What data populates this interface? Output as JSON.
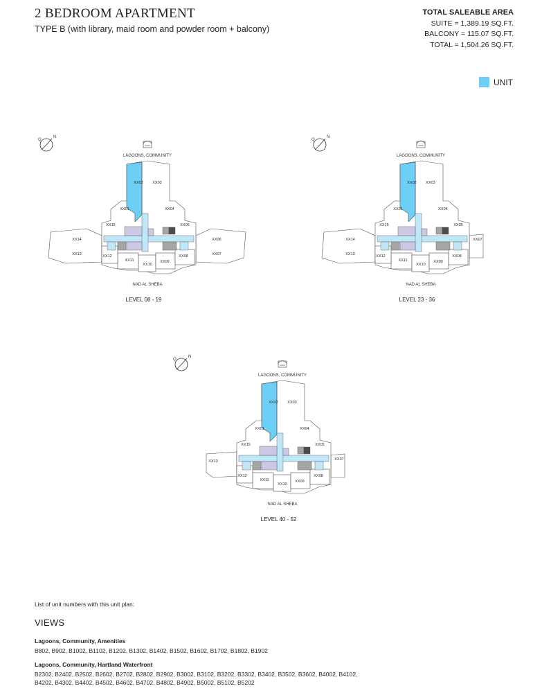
{
  "header": {
    "title": "2 BEDROOM APARTMENT",
    "subtitle": "TYPE B (with library, maid room and powder room + balcony)"
  },
  "saleable_area": {
    "heading": "TOTAL SALEABLE AREA",
    "suite": "SUITE = 1,389.19 SQ.FT.",
    "balcony": "BALCONY = 115.07 SQ.FT.",
    "total": "TOTAL = 1,504.26 SQ.FT."
  },
  "legend": {
    "label": "UNIT",
    "color": "#6dcff6"
  },
  "plans": [
    {
      "north_label": "N",
      "top_view": "LAGOONS, COMMUNITY",
      "bottom_view": "NAD AL SHEBA",
      "level": "LEVEL 08 - 19",
      "units": [
        "XX01",
        "XX02",
        "XX03",
        "XX04",
        "XX05",
        "XX06",
        "XX07",
        "XX08",
        "XX09",
        "XX10",
        "XX11",
        "XX12",
        "XX13",
        "XX14",
        "XX15"
      ],
      "highlighted_unit": "XX02"
    },
    {
      "north_label": "N",
      "top_view": "LAGOONS, COMMUNITY",
      "bottom_view": "NAD AL SHEBA",
      "level": "LEVEL 23 - 36",
      "units": [
        "XX01",
        "XX02",
        "XX03",
        "XX04",
        "XX05",
        "XX07",
        "XX08",
        "XX09",
        "XX10",
        "XX11",
        "XX12",
        "XX13",
        "XX14",
        "XX15"
      ],
      "highlighted_unit": "XX02"
    },
    {
      "north_label": "N",
      "top_view": "LAGOONS, COMMUNITY",
      "bottom_view": "NAD AL SHEBA",
      "level": "LEVEL 40 - 52",
      "units": [
        "XX01",
        "XX02",
        "XX03",
        "XX04",
        "XX05",
        "XX07",
        "XX08",
        "XX09",
        "XX10",
        "XX11",
        "XX12",
        "XX13",
        "XX15"
      ],
      "highlighted_unit": "XX02"
    }
  ],
  "units_list": {
    "intro": "List of unit numbers with this unit plan:",
    "views_title": "VIEWS",
    "groups": [
      {
        "heading": "Lagoons, Community, Amenities",
        "units": "B802, B902, B1002, B1102, B1202, B1302, B1402, B1502, B1602, B1702, B1802, B1902"
      },
      {
        "heading": "Lagoons, Community, Hartland Waterfront",
        "units": "B2302, B2402, B2502, B2602, B2702, B2802, B2902, B3002, B3102, B3202, B3302, B3402, B3502, B3602, B4002, B4102, B4202, B4302, B4402, B4502, B4602, B4702, B4802, B4902, B5002, B5102, B5202"
      }
    ]
  }
}
